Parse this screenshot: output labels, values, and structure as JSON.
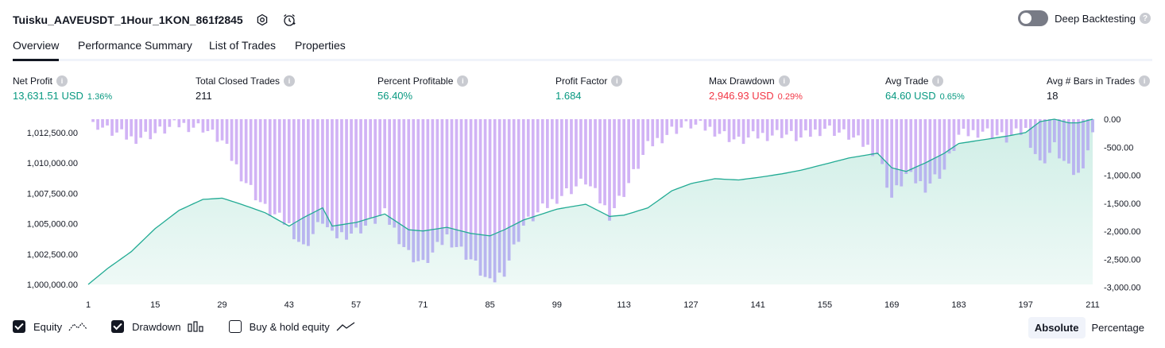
{
  "header": {
    "title": "Tuisku_AAVEUSDT_1Hour_1KON_861f2845",
    "deep_backtesting_label": "Deep Backtesting",
    "help_glyph": "?"
  },
  "tabs": [
    {
      "label": "Overview",
      "active": true
    },
    {
      "label": "Performance Summary",
      "active": false
    },
    {
      "label": "List of Trades",
      "active": false
    },
    {
      "label": "Properties",
      "active": false
    }
  ],
  "metrics": {
    "net_profit": {
      "label": "Net Profit",
      "value": "13,631.51 USD",
      "pct": "1.36%"
    },
    "total_closed_trades": {
      "label": "Total Closed Trades",
      "value": "211"
    },
    "percent_profitable": {
      "label": "Percent Profitable",
      "value": "56.40%"
    },
    "profit_factor": {
      "label": "Profit Factor",
      "value": "1.684"
    },
    "max_drawdown": {
      "label": "Max Drawdown",
      "value": "2,946.93 USD",
      "pct": "0.29%"
    },
    "avg_trade": {
      "label": "Avg Trade",
      "value": "64.60 USD",
      "pct": "0.65%"
    },
    "avg_bars": {
      "label": "Avg # Bars in Trades",
      "value": "18"
    }
  },
  "info_glyph": "i",
  "colors": {
    "positive": "#089981",
    "negative": "#f23645",
    "equity_line": "#22ab94",
    "equity_fill": "#cfeee6",
    "drawdown_bar": "#d1b3f5",
    "drawdown_overlap": "#b8b5ef"
  },
  "legend": {
    "equity": {
      "label": "Equity",
      "checked": true,
      "icon": "equity-line-icon"
    },
    "drawdown": {
      "label": "Drawdown",
      "checked": true,
      "icon": "drawdown-bars-icon"
    },
    "buy_hold": {
      "label": "Buy & hold equity",
      "checked": false,
      "icon": "buy-hold-line-icon"
    }
  },
  "modes": {
    "absolute": "Absolute",
    "percentage": "Percentage",
    "active": "absolute"
  },
  "chart_data": {
    "type": "area",
    "x_tick_labels": [
      "1",
      "15",
      "29",
      "43",
      "57",
      "71",
      "85",
      "99",
      "113",
      "127",
      "141",
      "155",
      "169",
      "183",
      "197",
      "211"
    ],
    "y_left_ticks": [
      "1,012,500.00",
      "1,010,000.00",
      "1,007,500.00",
      "1,005,000.00",
      "1,002,500.00",
      "1,000,000.00"
    ],
    "y_right_ticks": [
      "0.00",
      "-500.00",
      "-1,000.00",
      "-1,500.00",
      "-2,000.00",
      "-2,500.00",
      "-3,000.00"
    ],
    "ylim_left": [
      1000000,
      1013600
    ],
    "ylim_right": [
      -2950,
      0
    ],
    "series": [
      {
        "name": "Equity",
        "x": [
          1,
          5,
          10,
          15,
          20,
          25,
          29,
          33,
          38,
          43,
          46,
          50,
          52,
          57,
          63,
          68,
          71,
          76,
          81,
          85,
          88,
          92,
          99,
          105,
          110,
          113,
          118,
          123,
          127,
          132,
          137,
          141,
          146,
          150,
          155,
          160,
          166,
          169,
          172,
          176,
          180,
          183,
          188,
          193,
          197,
          200,
          203,
          206,
          208,
          211
        ],
        "values": [
          1000000,
          1001300,
          1002700,
          1004600,
          1006100,
          1007000,
          1007100,
          1006600,
          1005900,
          1004800,
          1005500,
          1006300,
          1004800,
          1005100,
          1005800,
          1004500,
          1004400,
          1004700,
          1004200,
          1004000,
          1004500,
          1005300,
          1006200,
          1006600,
          1005600,
          1005700,
          1006300,
          1007700,
          1008300,
          1008700,
          1008600,
          1008800,
          1009100,
          1009400,
          1009900,
          1010400,
          1010800,
          1009600,
          1009300,
          1010000,
          1010800,
          1011600,
          1011900,
          1012200,
          1012500,
          1013400,
          1013600,
          1013300,
          1013300,
          1013600
        ]
      },
      {
        "name": "Drawdown",
        "x": [
          1,
          5,
          10,
          15,
          20,
          25,
          29,
          33,
          38,
          43,
          46,
          50,
          52,
          57,
          63,
          68,
          71,
          76,
          81,
          85,
          88,
          92,
          99,
          105,
          110,
          113,
          118,
          123,
          127,
          132,
          137,
          141,
          146,
          150,
          155,
          160,
          166,
          169,
          172,
          176,
          180,
          183,
          188,
          193,
          197,
          200,
          203,
          206,
          208,
          211
        ],
        "values": [
          0,
          -200,
          -350,
          -250,
          -100,
          -150,
          -400,
          -1000,
          -1600,
          -1900,
          -2300,
          -1800,
          -2100,
          -2000,
          -1700,
          -2400,
          -2600,
          -2100,
          -2500,
          -2950,
          -2700,
          -1900,
          -1400,
          -1100,
          -1700,
          -1300,
          -500,
          -200,
          -100,
          -200,
          -400,
          -300,
          -250,
          -350,
          -150,
          -300,
          -600,
          -1400,
          -1000,
          -1200,
          -900,
          -300,
          -200,
          -350,
          -200,
          -800,
          -500,
          -900,
          -1000,
          -300
        ]
      }
    ]
  }
}
